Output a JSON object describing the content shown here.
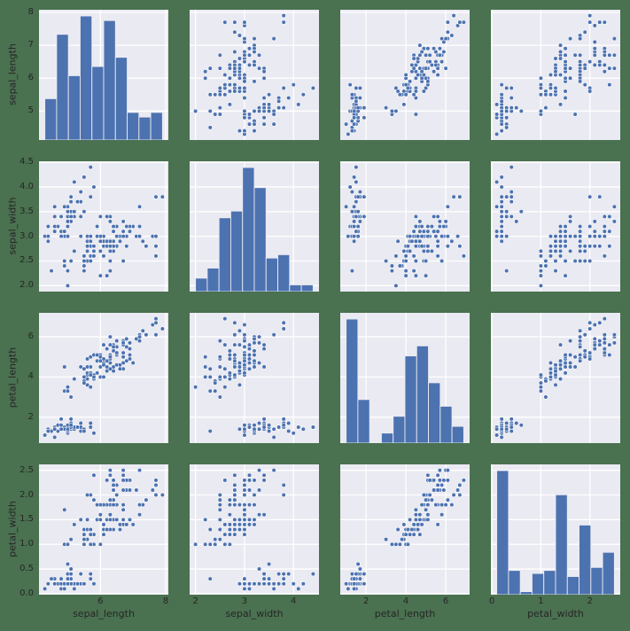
{
  "figure": {
    "description": "Seaborn pairplot (scatterplot matrix) of iris flower measurements, histograms on the diagonal"
  },
  "chart_data": {
    "type": "scatter-matrix",
    "diagonal": "histogram",
    "grid": "on",
    "legend": "none",
    "title": "",
    "variables": [
      "sepal_length",
      "sepal_width",
      "petal_length",
      "petal_width"
    ],
    "n_points": 150,
    "colors": {
      "marker": "#4c72b0",
      "bar": "#4c72b0",
      "axes_background": "#eaeaf2",
      "grid": "#ffffff",
      "text": "#262626",
      "figure_background": "#4a7150"
    },
    "axis_limits": {
      "sepal_length": [
        4.12,
        8.08
      ],
      "sepal_width": [
        1.88,
        4.52
      ],
      "petal_length": [
        0.705,
        7.195
      ],
      "petal_width": [
        -0.02,
        2.62
      ]
    },
    "x_ticks": {
      "sepal_length": {
        "values": [
          6,
          8
        ],
        "labels": [
          "6",
          "8"
        ]
      },
      "sepal_width": {
        "values": [
          2,
          3,
          4
        ],
        "labels": [
          "2",
          "3",
          "4"
        ]
      },
      "petal_length": {
        "values": [
          2,
          4,
          6
        ],
        "labels": [
          "2",
          "4",
          "6"
        ]
      },
      "petal_width": {
        "values": [
          0,
          1,
          2
        ],
        "labels": [
          "0",
          "1",
          "2"
        ]
      }
    },
    "y_ticks": {
      "sepal_length": {
        "values": [
          5,
          6,
          7,
          8
        ],
        "labels": [
          "5",
          "6",
          "7",
          "8"
        ]
      },
      "sepal_width": {
        "values": [
          2.0,
          2.5,
          3.0,
          3.5,
          4.0,
          4.5
        ],
        "labels": [
          "2.0",
          "2.5",
          "3.0",
          "3.5",
          "4.0",
          "4.5"
        ]
      },
      "petal_length": {
        "values": [
          2,
          4,
          6
        ],
        "labels": [
          "2",
          "4",
          "6"
        ]
      },
      "petal_width": {
        "values": [
          0.0,
          0.5,
          1.0,
          1.5,
          2.0,
          2.5
        ],
        "labels": [
          "0.0",
          "0.5",
          "1.0",
          "1.5",
          "2.0",
          "2.5"
        ]
      }
    },
    "histograms": {
      "sepal_length": {
        "bin_start": 4.3,
        "bin_end": 7.9,
        "counts": [
          9,
          23,
          14,
          27,
          16,
          26,
          18,
          6,
          5,
          6
        ]
      },
      "sepal_width": {
        "bin_start": 2.0,
        "bin_end": 4.4,
        "counts": [
          4,
          7,
          22,
          24,
          37,
          31,
          10,
          11,
          2,
          2
        ]
      },
      "petal_length": {
        "bin_start": 1.0,
        "bin_end": 6.9,
        "counts": [
          37,
          13,
          0,
          3,
          8,
          26,
          29,
          18,
          11,
          5
        ]
      },
      "petal_width": {
        "bin_start": 0.1,
        "bin_end": 2.5,
        "counts": [
          41,
          8,
          1,
          7,
          8,
          33,
          6,
          23,
          9,
          14
        ]
      }
    },
    "data": {
      "sepal_length": [
        5.1,
        4.9,
        4.7,
        4.6,
        5.0,
        5.4,
        4.6,
        5.0,
        4.4,
        4.9,
        5.4,
        4.8,
        4.8,
        4.3,
        5.8,
        5.7,
        5.4,
        5.1,
        5.7,
        5.1,
        5.4,
        5.1,
        4.6,
        5.1,
        4.8,
        5.0,
        5.0,
        5.2,
        5.2,
        4.7,
        4.8,
        5.4,
        5.2,
        5.5,
        4.9,
        5.0,
        5.5,
        4.9,
        4.4,
        5.1,
        5.0,
        4.5,
        4.4,
        5.0,
        5.1,
        4.8,
        5.1,
        4.6,
        5.3,
        5.0,
        7.0,
        6.4,
        6.9,
        5.5,
        6.5,
        5.7,
        6.3,
        4.9,
        6.6,
        5.2,
        5.0,
        5.9,
        6.0,
        6.1,
        5.6,
        6.7,
        5.6,
        5.8,
        6.2,
        5.6,
        5.9,
        6.1,
        6.3,
        6.1,
        6.4,
        6.6,
        6.8,
        6.7,
        6.0,
        5.7,
        5.5,
        5.5,
        5.8,
        6.0,
        5.4,
        6.0,
        6.7,
        6.3,
        5.6,
        5.5,
        5.5,
        6.1,
        5.8,
        5.0,
        5.6,
        5.7,
        5.7,
        6.2,
        5.1,
        5.7,
        6.3,
        5.8,
        7.1,
        6.3,
        6.5,
        7.6,
        4.9,
        7.3,
        6.7,
        7.2,
        6.5,
        6.4,
        6.8,
        5.7,
        5.8,
        6.4,
        6.5,
        7.7,
        7.7,
        6.0,
        6.9,
        5.6,
        7.7,
        6.3,
        6.7,
        7.2,
        6.2,
        6.1,
        6.4,
        7.2,
        7.4,
        7.9,
        6.4,
        6.3,
        6.1,
        7.7,
        6.3,
        6.4,
        6.0,
        6.9,
        6.7,
        6.9,
        5.8,
        6.8,
        6.7,
        6.7,
        6.3,
        6.5,
        6.2,
        5.9
      ],
      "sepal_width": [
        3.5,
        3.0,
        3.2,
        3.1,
        3.6,
        3.9,
        3.4,
        3.4,
        2.9,
        3.1,
        3.7,
        3.4,
        3.0,
        3.0,
        4.0,
        4.4,
        3.9,
        3.5,
        3.8,
        3.8,
        3.4,
        3.7,
        3.6,
        3.3,
        3.4,
        3.0,
        3.4,
        3.5,
        3.4,
        3.2,
        3.1,
        3.4,
        4.1,
        4.2,
        3.1,
        3.2,
        3.5,
        3.6,
        3.0,
        3.4,
        3.5,
        2.3,
        3.2,
        3.5,
        3.8,
        3.0,
        3.8,
        3.2,
        3.7,
        3.3,
        3.2,
        3.2,
        3.1,
        2.3,
        2.8,
        2.8,
        3.3,
        2.4,
        2.9,
        2.7,
        2.0,
        3.0,
        2.2,
        2.9,
        2.9,
        3.1,
        3.0,
        2.7,
        2.2,
        2.5,
        3.2,
        2.8,
        2.5,
        2.8,
        2.9,
        3.0,
        2.8,
        3.0,
        2.9,
        2.6,
        2.4,
        2.4,
        2.7,
        2.7,
        3.0,
        3.4,
        3.1,
        2.3,
        3.0,
        2.5,
        2.6,
        3.0,
        2.6,
        2.3,
        2.7,
        3.0,
        2.9,
        2.9,
        2.5,
        2.8,
        3.3,
        2.7,
        3.0,
        2.9,
        3.0,
        3.0,
        2.5,
        2.9,
        2.5,
        3.6,
        3.2,
        2.7,
        3.0,
        2.5,
        2.8,
        3.2,
        3.0,
        3.8,
        2.6,
        2.2,
        3.2,
        2.8,
        2.8,
        2.7,
        3.3,
        3.2,
        2.8,
        3.0,
        2.8,
        3.0,
        2.8,
        3.8,
        2.8,
        2.8,
        2.6,
        3.0,
        3.4,
        3.1,
        3.0,
        3.1,
        3.1,
        3.1,
        2.7,
        3.2,
        3.3,
        3.0,
        2.5,
        3.0,
        3.4,
        3.0
      ],
      "petal_length": [
        1.4,
        1.4,
        1.3,
        1.5,
        1.4,
        1.7,
        1.4,
        1.5,
        1.4,
        1.5,
        1.5,
        1.6,
        1.4,
        1.1,
        1.2,
        1.5,
        1.3,
        1.4,
        1.7,
        1.5,
        1.7,
        1.5,
        1.0,
        1.7,
        1.9,
        1.6,
        1.6,
        1.5,
        1.4,
        1.6,
        1.6,
        1.5,
        1.5,
        1.4,
        1.5,
        1.2,
        1.3,
        1.4,
        1.3,
        1.5,
        1.3,
        1.3,
        1.3,
        1.6,
        1.9,
        1.4,
        1.6,
        1.4,
        1.5,
        1.4,
        4.7,
        4.5,
        4.9,
        4.0,
        4.6,
        4.5,
        4.7,
        3.3,
        4.6,
        3.9,
        3.5,
        4.2,
        4.0,
        4.7,
        3.6,
        4.4,
        4.5,
        4.1,
        4.5,
        3.9,
        4.8,
        4.0,
        4.9,
        4.7,
        4.3,
        4.4,
        4.8,
        5.0,
        4.5,
        3.5,
        3.8,
        3.7,
        3.9,
        5.1,
        4.5,
        4.5,
        4.7,
        4.4,
        4.1,
        4.0,
        4.4,
        4.6,
        4.0,
        3.3,
        4.2,
        4.2,
        4.2,
        4.3,
        3.0,
        4.1,
        6.0,
        5.1,
        5.9,
        5.6,
        5.8,
        6.6,
        4.5,
        6.3,
        5.8,
        6.1,
        5.1,
        5.3,
        5.5,
        5.0,
        5.1,
        5.3,
        5.5,
        6.7,
        6.9,
        5.0,
        5.7,
        4.9,
        6.7,
        4.9,
        5.7,
        6.0,
        4.8,
        4.9,
        5.6,
        5.8,
        6.1,
        6.4,
        5.6,
        5.1,
        5.6,
        6.1,
        5.6,
        5.5,
        4.8,
        5.4,
        5.6,
        5.1,
        5.1,
        5.9,
        5.7,
        5.2,
        5.0,
        5.2,
        5.4,
        5.1
      ],
      "petal_width": [
        0.2,
        0.2,
        0.2,
        0.2,
        0.2,
        0.4,
        0.3,
        0.2,
        0.2,
        0.1,
        0.2,
        0.2,
        0.1,
        0.1,
        0.2,
        0.4,
        0.4,
        0.3,
        0.3,
        0.3,
        0.2,
        0.4,
        0.2,
        0.5,
        0.2,
        0.2,
        0.4,
        0.2,
        0.2,
        0.2,
        0.2,
        0.4,
        0.1,
        0.2,
        0.2,
        0.2,
        0.2,
        0.1,
        0.2,
        0.2,
        0.3,
        0.3,
        0.2,
        0.6,
        0.4,
        0.3,
        0.2,
        0.2,
        0.2,
        0.2,
        1.4,
        1.5,
        1.5,
        1.3,
        1.5,
        1.3,
        1.6,
        1.0,
        1.3,
        1.4,
        1.0,
        1.5,
        1.0,
        1.4,
        1.3,
        1.4,
        1.5,
        1.0,
        1.5,
        1.1,
        1.8,
        1.3,
        1.5,
        1.2,
        1.3,
        1.4,
        1.4,
        1.7,
        1.5,
        1.0,
        1.1,
        1.0,
        1.2,
        1.6,
        1.5,
        1.6,
        1.5,
        1.3,
        1.3,
        1.3,
        1.2,
        1.4,
        1.2,
        1.0,
        1.3,
        1.2,
        1.3,
        1.3,
        1.1,
        1.3,
        2.5,
        1.9,
        2.1,
        1.8,
        2.2,
        2.1,
        1.7,
        1.8,
        1.8,
        2.5,
        2.0,
        1.9,
        2.1,
        2.0,
        2.4,
        2.3,
        1.8,
        2.2,
        2.3,
        1.5,
        2.3,
        2.0,
        2.0,
        1.8,
        2.1,
        1.8,
        1.8,
        1.8,
        2.1,
        1.6,
        1.9,
        2.0,
        2.2,
        1.5,
        1.4,
        2.3,
        2.4,
        1.8,
        1.8,
        2.1,
        2.4,
        2.3,
        1.9,
        2.3,
        2.5,
        2.3,
        1.9,
        2.0,
        2.3,
        1.8
      ]
    }
  }
}
